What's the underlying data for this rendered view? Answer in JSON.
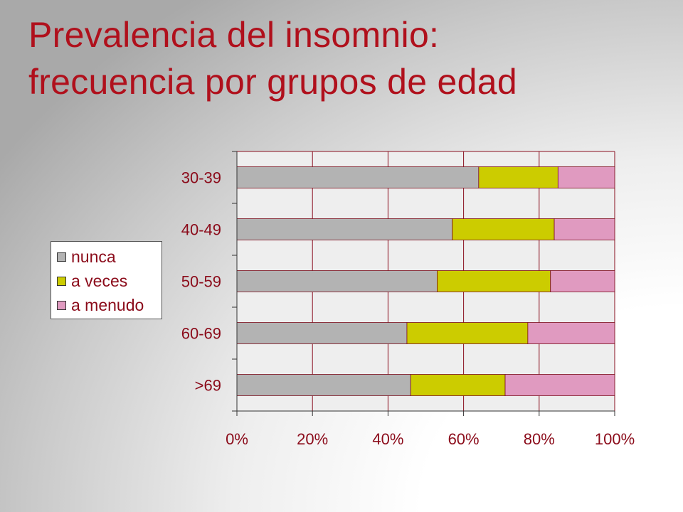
{
  "title": {
    "line1": "Prevalencia del insomnio:",
    "line2": "frecuencia por grupos de edad"
  },
  "colors": {
    "title": "#b0101c",
    "labels": "#8b0b1a",
    "nunca": "#b3b3b3",
    "a_veces": "#cccc00",
    "a_menudo": "#e09ac0"
  },
  "chart_data": {
    "type": "bar",
    "orientation": "horizontal",
    "stacked": "percent",
    "title": "",
    "xlabel": "",
    "ylabel": "",
    "categories": [
      "30-39",
      "40-49",
      "50-59",
      "60-69",
      ">69"
    ],
    "series": [
      {
        "name": "nunca",
        "values": [
          64,
          57,
          53,
          45,
          46
        ],
        "color": "#b3b3b3"
      },
      {
        "name": "a veces",
        "values": [
          21,
          27,
          30,
          32,
          25
        ],
        "color": "#cccc00"
      },
      {
        "name": "a menudo",
        "values": [
          15,
          16,
          17,
          23,
          29
        ],
        "color": "#e09ac0"
      }
    ],
    "x_ticks": [
      "0%",
      "20%",
      "40%",
      "60%",
      "80%",
      "100%"
    ],
    "xlim": [
      0,
      100
    ],
    "grid": true,
    "legend_position": "left"
  }
}
